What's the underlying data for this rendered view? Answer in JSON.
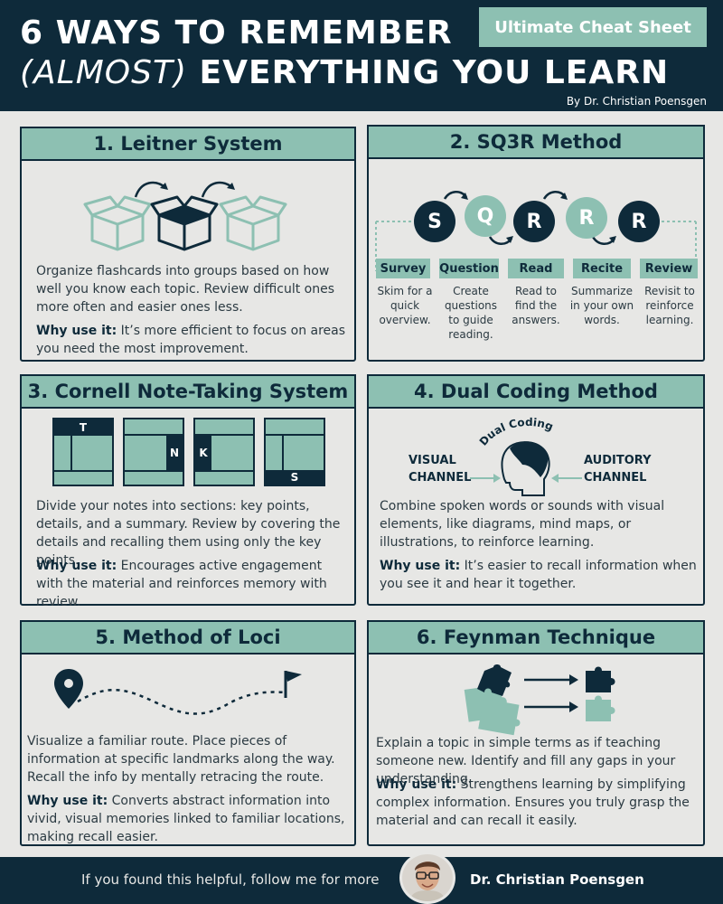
{
  "header": {
    "title_line1": "6 WAYS TO REMEMBER",
    "title_line2_italic": "(ALMOST)",
    "title_line2_rest": " EVERYTHING YOU LEARN",
    "badge": "Ultimate Cheat Sheet",
    "byline": "By Dr. Christian Poensgen"
  },
  "sections": [
    {
      "title": "1. Leitner System",
      "body": "Organize flashcards into groups based on how well you know each topic. Review difficult ones more often and easier ones less.",
      "why_label": "Why use it:",
      "why_text": " It’s more efficient to focus on areas you need the most improvement."
    },
    {
      "title": "2. SQ3R Method",
      "steps": [
        {
          "letter": "S",
          "label": "Survey",
          "desc": "Skim for a quick overview."
        },
        {
          "letter": "Q",
          "label": "Question",
          "desc": "Create questions to guide reading."
        },
        {
          "letter": "R",
          "label": "Read",
          "desc": "Read to find the answers."
        },
        {
          "letter": "R",
          "label": "Recite",
          "desc": "Summarize in your own words."
        },
        {
          "letter": "R",
          "label": "Review",
          "desc": "Revisit to reinforce learning."
        }
      ]
    },
    {
      "title": "3. Cornell Note-Taking System",
      "letters": [
        "T",
        "N",
        "K",
        "S"
      ],
      "body": "Divide your notes into sections: key points, details, and a summary. Review by covering the details and recalling them using only the key points.",
      "why_label": "Why use it:",
      "why_text": " Encourages active engagement with the material and reinforces memory with review."
    },
    {
      "title": "4. Dual Coding Method",
      "visual": "VISUAL CHANNEL",
      "auditory": "AUDITORY CHANNEL",
      "arc_label": "Dual Coding",
      "body": "Combine spoken words or sounds with visual elements, like diagrams, mind maps, or illustrations, to reinforce learning.",
      "why_label": "Why use it:",
      "why_text": " It’s easier to recall information when you see it and hear it together."
    },
    {
      "title": "5. Method of Loci",
      "body": "Visualize a familiar route. Place pieces of information at specific landmarks along the way. Recall the info by mentally retracing the route.",
      "why_label": "Why use it:",
      "why_text": " Converts abstract information into vivid, visual memories linked to familiar locations, making recall easier."
    },
    {
      "title": "6. Feynman Technique",
      "body": "Explain a topic in simple terms as if teaching someone new. Identify and fill any gaps in your understanding.",
      "why_label": "Why use it:",
      "why_text": " Strengthens learning by simplifying complex information. Ensures you truly grasp the material and can recall it easily."
    }
  ],
  "footer": {
    "follow": "If you found this helpful, follow me for more",
    "name": "Dr. Christian Poensgen"
  },
  "colors": {
    "navy": "#0e2a3a",
    "teal": "#8dc0b2",
    "background": "#e7e7e5"
  }
}
